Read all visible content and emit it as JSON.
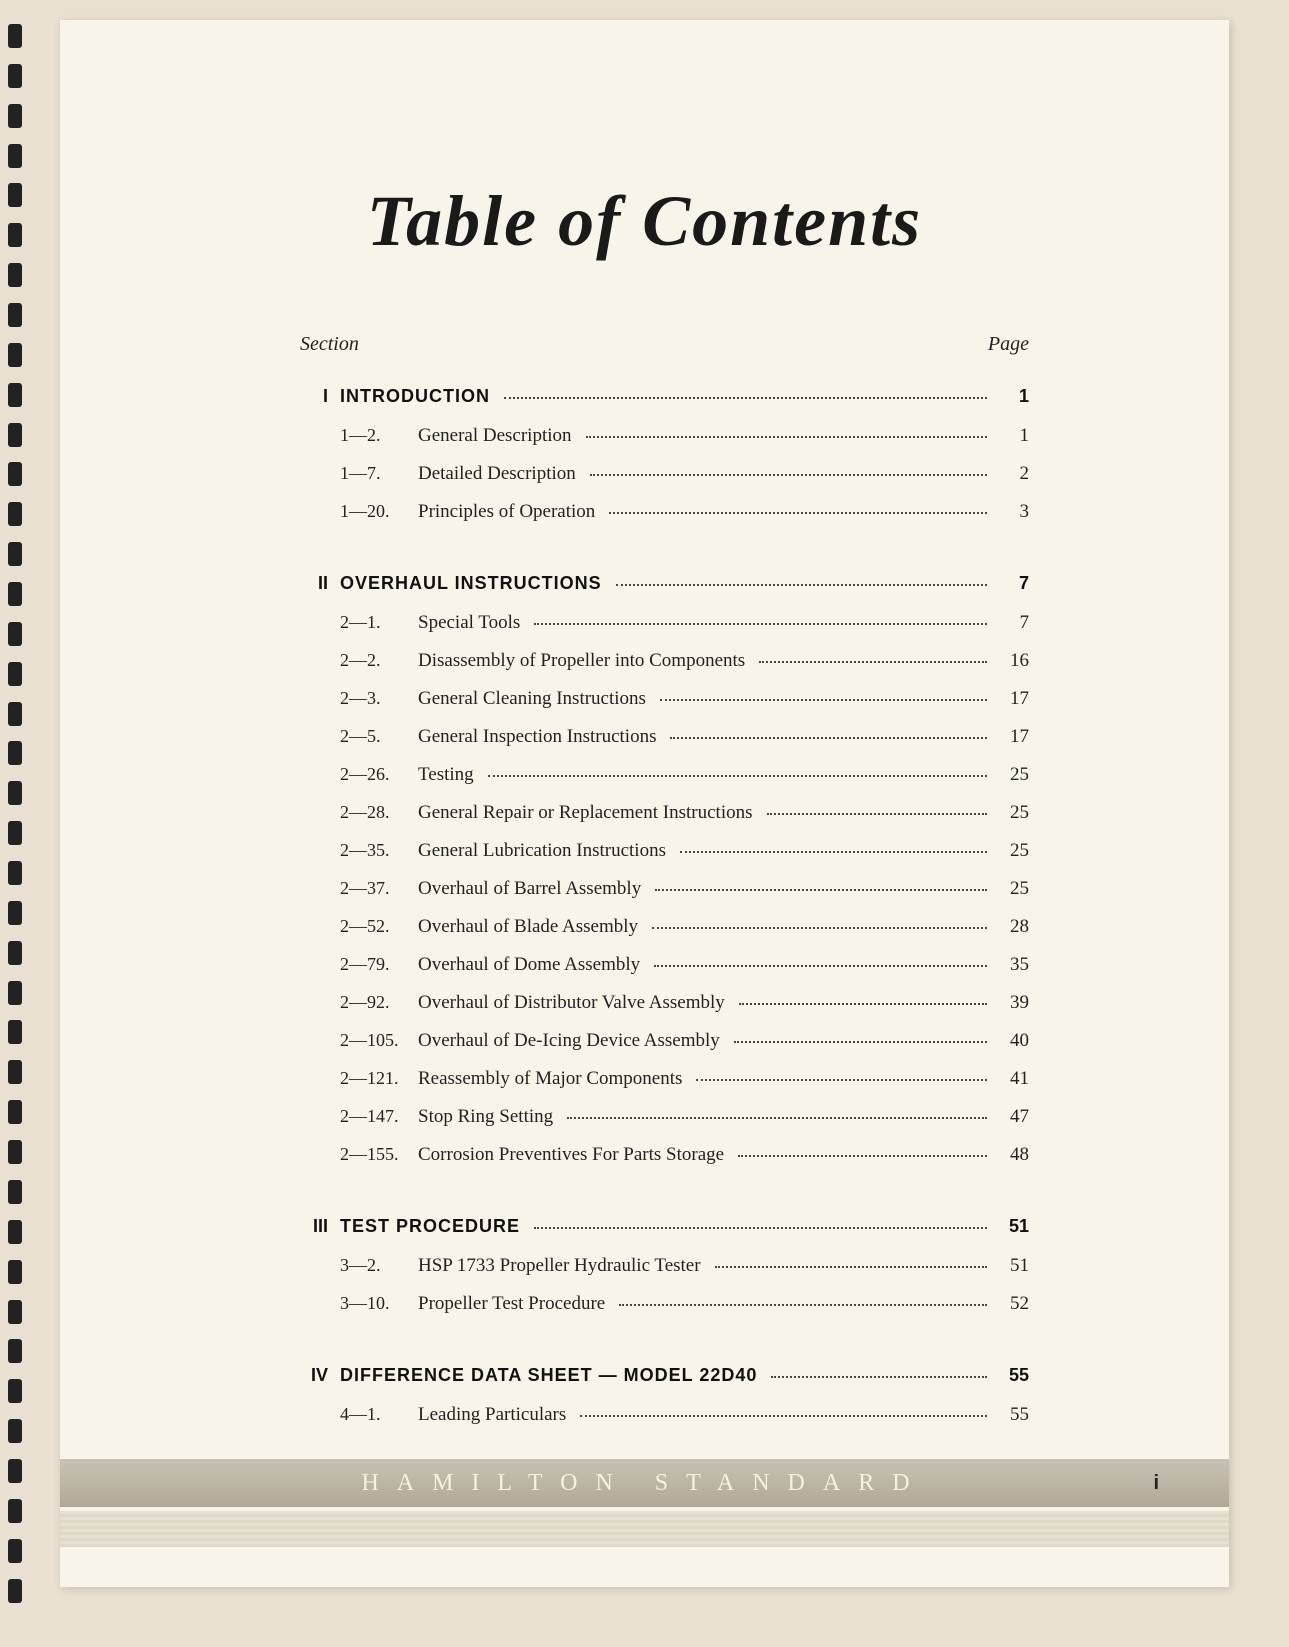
{
  "title": "Table of Contents",
  "header": {
    "left": "Section",
    "right": "Page"
  },
  "sections": [
    {
      "num": "I",
      "title": "INTRODUCTION",
      "page": "1",
      "entries": [
        {
          "num": "1—2.",
          "title": "General Description",
          "page": "1"
        },
        {
          "num": "1—7.",
          "title": "Detailed Description",
          "page": "2"
        },
        {
          "num": "1—20.",
          "title": "Principles of Operation",
          "page": "3"
        }
      ]
    },
    {
      "num": "II",
      "title": "OVERHAUL INSTRUCTIONS",
      "page": "7",
      "entries": [
        {
          "num": "2—1.",
          "title": "Special Tools",
          "page": "7"
        },
        {
          "num": "2—2.",
          "title": "Disassembly of Propeller into Components",
          "page": "16"
        },
        {
          "num": "2—3.",
          "title": "General Cleaning Instructions",
          "page": "17"
        },
        {
          "num": "2—5.",
          "title": "General Inspection Instructions",
          "page": "17"
        },
        {
          "num": "2—26.",
          "title": "Testing",
          "page": "25"
        },
        {
          "num": "2—28.",
          "title": "General Repair or Replacement Instructions",
          "page": "25"
        },
        {
          "num": "2—35.",
          "title": "General Lubrication Instructions",
          "page": "25"
        },
        {
          "num": "2—37.",
          "title": "Overhaul of Barrel Assembly",
          "page": "25"
        },
        {
          "num": "2—52.",
          "title": "Overhaul of Blade Assembly",
          "page": "28"
        },
        {
          "num": "2—79.",
          "title": "Overhaul of Dome Assembly",
          "page": "35"
        },
        {
          "num": "2—92.",
          "title": "Overhaul of Distributor Valve Assembly",
          "page": "39"
        },
        {
          "num": "2—105.",
          "title": "Overhaul of De-Icing Device Assembly",
          "page": "40"
        },
        {
          "num": "2—121.",
          "title": "Reassembly of Major Components",
          "page": "41"
        },
        {
          "num": "2—147.",
          "title": "Stop Ring Setting",
          "page": "47"
        },
        {
          "num": "2—155.",
          "title": "Corrosion Preventives For Parts Storage",
          "page": "48"
        }
      ]
    },
    {
      "num": "III",
      "title": "TEST PROCEDURE",
      "page": "51",
      "entries": [
        {
          "num": "3—2.",
          "title": "HSP 1733 Propeller Hydraulic Tester",
          "page": "51"
        },
        {
          "num": "3—10.",
          "title": "Propeller Test Procedure",
          "page": "52"
        }
      ]
    },
    {
      "num": "IV",
      "title": "DIFFERENCE DATA SHEET — MODEL 22D40",
      "page": "55",
      "entries": [
        {
          "num": "4—1.",
          "title": "Leading Particulars",
          "page": "55"
        }
      ]
    }
  ],
  "footer": {
    "brand": "HAMILTON STANDARD",
    "pagenum": "i"
  },
  "binding_hole_count": 40
}
